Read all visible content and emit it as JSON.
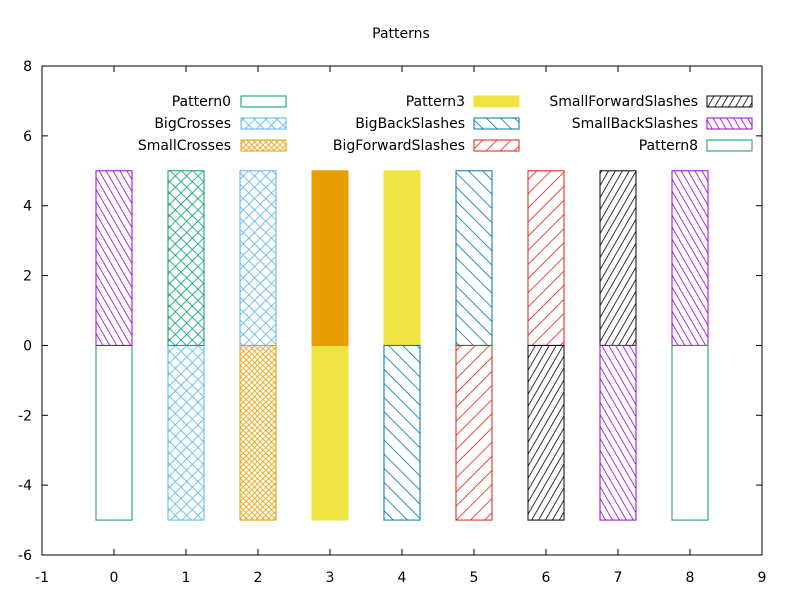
{
  "chart_data": {
    "type": "bar",
    "title": "Patterns",
    "xlabel": "",
    "ylabel": "",
    "xlim": [
      -1,
      9
    ],
    "ylim": [
      -6,
      8
    ],
    "x_ticks": [
      "-1",
      "0",
      "1",
      "2",
      "3",
      "4",
      "5",
      "6",
      "7",
      "8",
      "9"
    ],
    "y_ticks": [
      "-6",
      "-4",
      "-2",
      "0",
      "2",
      "4",
      "6",
      "8"
    ],
    "categories": [
      0,
      1,
      2,
      3,
      4,
      5,
      6,
      7,
      8
    ],
    "bar_width": 0.5,
    "legend_position": "top",
    "series": [
      {
        "name": "Pattern0",
        "color": "#009e73",
        "pattern": "empty",
        "bars": [
          {
            "x": 0,
            "y0": -5,
            "y1": 0
          }
        ]
      },
      {
        "name": "BigCrosses",
        "color": "#56b4e9",
        "pattern": "big-crosses",
        "bars": [
          {
            "x": 1,
            "y0": -5,
            "y1": 0
          },
          {
            "x": 2,
            "y0": 0,
            "y1": 5
          }
        ]
      },
      {
        "name": "SmallCrosses",
        "color": "#e69f00",
        "pattern": "small-crosses",
        "bars": [
          {
            "x": 2,
            "y0": -5,
            "y1": 0
          }
        ]
      },
      {
        "name": "Pattern3",
        "color": "#f0e442",
        "pattern": "solid",
        "bars": [
          {
            "x": 3,
            "y0": -5,
            "y1": 0
          },
          {
            "x": 4,
            "y0": 0,
            "y1": 5
          }
        ]
      },
      {
        "name": "BigBackSlashes",
        "color": "#0072b2",
        "pattern": "big-back-slashes",
        "bars": [
          {
            "x": 4,
            "y0": -5,
            "y1": 0
          },
          {
            "x": 5,
            "y0": 0,
            "y1": 5
          }
        ]
      },
      {
        "name": "BigForwardSlashes",
        "color": "#e51e10",
        "pattern": "big-forward-slashes",
        "bars": [
          {
            "x": 5,
            "y0": -5,
            "y1": 0
          },
          {
            "x": 6,
            "y0": 0,
            "y1": 5
          }
        ]
      },
      {
        "name": "SmallForwardSlashes",
        "color": "#000000",
        "pattern": "small-forward-slashes",
        "bars": [
          {
            "x": 6,
            "y0": -5,
            "y1": 0
          },
          {
            "x": 7,
            "y0": 0,
            "y1": 5
          }
        ]
      },
      {
        "name": "SmallBackSlashes",
        "color": "#9400d3",
        "pattern": "small-back-slashes",
        "bars": [
          {
            "x": 7,
            "y0": -5,
            "y1": 0
          },
          {
            "x": 0,
            "y0": 0,
            "y1": 5
          },
          {
            "x": 8,
            "y0": 0,
            "y1": 5
          }
        ]
      },
      {
        "name": "Pattern8",
        "color": "#009e73",
        "pattern": "empty",
        "bars": [
          {
            "x": 8,
            "y0": -5,
            "y1": 0
          }
        ]
      },
      {
        "name": "",
        "color": "#009e73",
        "pattern": "big-crosses",
        "bars": [
          {
            "x": 1,
            "y0": 0,
            "y1": 5
          }
        ]
      },
      {
        "name": "",
        "color": "#e69f00",
        "pattern": "solid",
        "bars": [
          {
            "x": 3,
            "y0": 0,
            "y1": 5
          }
        ]
      }
    ]
  }
}
